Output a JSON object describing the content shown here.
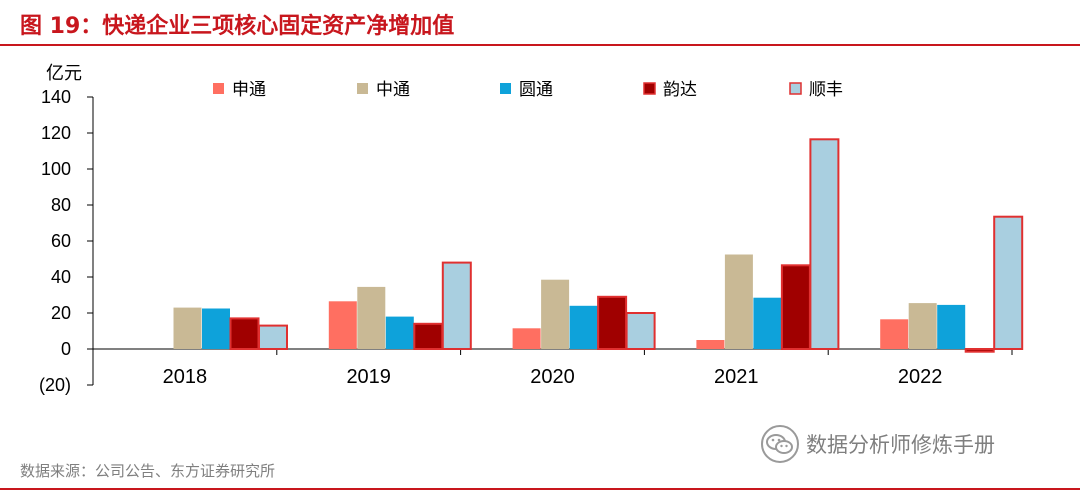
{
  "header": {
    "title": "图 19：快递企业三项核心固定资产净增加值"
  },
  "footer": {
    "source": "数据来源：公司公告、东方证券研究所",
    "watermark": "数据分析师修炼手册",
    "watermark_icon": "wechat-icon"
  },
  "chart_data": {
    "type": "bar",
    "unit": "亿元",
    "categories": [
      "2018",
      "2019",
      "2020",
      "2021",
      "2022"
    ],
    "y_ticks": [
      "140",
      "120",
      "100",
      "80",
      "60",
      "40",
      "20",
      "0",
      "(20)"
    ],
    "ylim": [
      -20,
      140
    ],
    "grid": false,
    "legend_position": "top",
    "series": [
      {
        "name": "申通",
        "color": "#ff6f61",
        "values": [
          null,
          26.5,
          11.5,
          5,
          16.5
        ]
      },
      {
        "name": "中通",
        "color": "#c9b995",
        "values": [
          23,
          34.5,
          38.5,
          52.5,
          25.5
        ]
      },
      {
        "name": "圆通",
        "color": "#0ea2da",
        "values": [
          22.5,
          18,
          24,
          28.5,
          24.5
        ]
      },
      {
        "name": "韵达",
        "color": "#a00000",
        "values": [
          17,
          14,
          29,
          46.5,
          -1.5
        ]
      },
      {
        "name": "顺丰",
        "color": "#a9cfe0",
        "values": [
          13,
          48,
          20,
          116.5,
          73.5
        ]
      }
    ]
  }
}
